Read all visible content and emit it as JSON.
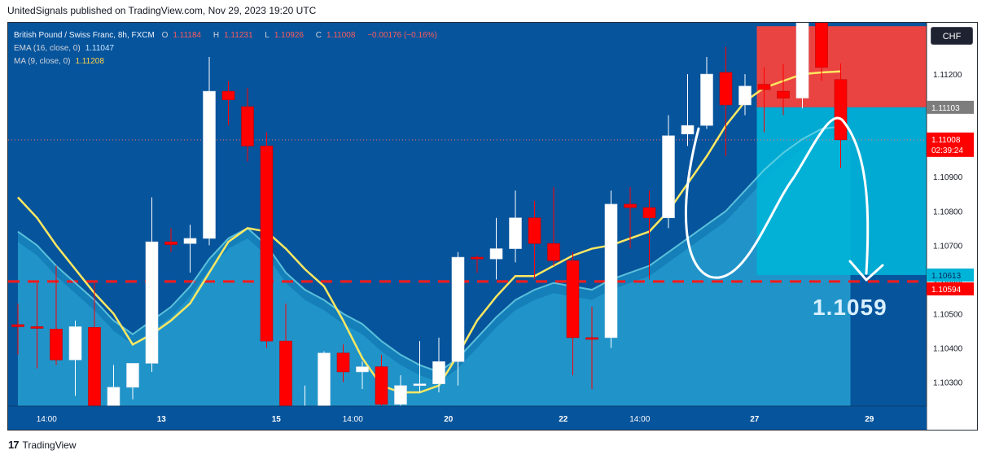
{
  "header": {
    "caption": "UnitedSignals published on TradingView.com, Nov 29, 2023 19:20 UTC"
  },
  "legend": {
    "symbol": "British Pound / Swiss Franc, 8h, FXCM",
    "o_label": "O",
    "o": "1.11184",
    "h_label": "H",
    "h": "1.11231",
    "l_label": "L",
    "l": "1.10926",
    "c_label": "C",
    "c": "1.11008",
    "change": "−0.00176 (−0.16%)",
    "ema_label": "EMA (16, close, 0)",
    "ema_value": "1.11047",
    "ma_label": "MA (9, close, 0)",
    "ma_value": "1.11208"
  },
  "currency_button": "CHF",
  "annotation_price": "1.1059",
  "footer": {
    "logo_text": "TradingView"
  },
  "colors": {
    "background": "#06549c",
    "up": "#ffffff",
    "down": "#ff0000",
    "ema": "#6fd6e6",
    "ma": "#ffe861",
    "stop_zone": "#f6433d",
    "target_zone": "#00b4d8",
    "dashed_level": "#ff1a1a"
  },
  "price_labels": {
    "current_marker": "1.11103",
    "close_price": "1.11008",
    "countdown": "02:39:24",
    "target_top": "1.10613",
    "dashed_level": "1.10594"
  },
  "chart_data": {
    "type": "candlestick",
    "title": "British Pound / Swiss Franc, 8h, FXCM",
    "ylim": [
      1.1023,
      1.1135
    ],
    "y_ticks": [
      "1.10300",
      "1.10400",
      "1.10500",
      "1.10600",
      "1.10700",
      "1.10800",
      "1.10900",
      "1.11000",
      "1.11100",
      "1.11200"
    ],
    "x_ticks": [
      {
        "label": "14:00",
        "index": 1.5
      },
      {
        "label": "13",
        "index": 7.5
      },
      {
        "label": "15",
        "index": 13.5
      },
      {
        "label": "14:00",
        "index": 17.5
      },
      {
        "label": "20",
        "index": 22.5
      },
      {
        "label": "22",
        "index": 28.5
      },
      {
        "label": "14:00",
        "index": 32.5
      },
      {
        "label": "27",
        "index": 38.5
      },
      {
        "label": "29",
        "index": 44.5
      }
    ],
    "candles": [
      {
        "o": 1.10468,
        "h": 1.1053,
        "l": 1.1038,
        "c": 1.10462
      },
      {
        "o": 1.10462,
        "h": 1.1059,
        "l": 1.1034,
        "c": 1.10458
      },
      {
        "o": 1.10455,
        "h": 1.1064,
        "l": 1.1035,
        "c": 1.10365
      },
      {
        "o": 1.10365,
        "h": 1.1048,
        "l": 1.1026,
        "c": 1.10462
      },
      {
        "o": 1.1046,
        "h": 1.1059,
        "l": 1.102,
        "c": 1.1022
      },
      {
        "o": 1.1023,
        "h": 1.1035,
        "l": 1.1018,
        "c": 1.10285
      },
      {
        "o": 1.10285,
        "h": 1.1035,
        "l": 1.1025,
        "c": 1.10355
      },
      {
        "o": 1.10355,
        "h": 1.1084,
        "l": 1.1033,
        "c": 1.1071
      },
      {
        "o": 1.1071,
        "h": 1.1075,
        "l": 1.1068,
        "c": 1.10702
      },
      {
        "o": 1.10705,
        "h": 1.1076,
        "l": 1.1062,
        "c": 1.1072
      },
      {
        "o": 1.1072,
        "h": 1.1125,
        "l": 1.107,
        "c": 1.1115
      },
      {
        "o": 1.1115,
        "h": 1.1118,
        "l": 1.1105,
        "c": 1.11125
      },
      {
        "o": 1.11105,
        "h": 1.1116,
        "l": 1.10945,
        "c": 1.1099
      },
      {
        "o": 1.1099,
        "h": 1.1103,
        "l": 1.104,
        "c": 1.1042
      },
      {
        "o": 1.1042,
        "h": 1.1053,
        "l": 1.1015,
        "c": 1.102
      },
      {
        "o": 1.1019,
        "h": 1.1029,
        "l": 1.1016,
        "c": 1.102
      },
      {
        "o": 1.1021,
        "h": 1.1039,
        "l": 1.1019,
        "c": 1.10385
      },
      {
        "o": 1.10385,
        "h": 1.1041,
        "l": 1.103,
        "c": 1.1033
      },
      {
        "o": 1.1033,
        "h": 1.1036,
        "l": 1.1028,
        "c": 1.10345
      },
      {
        "o": 1.10345,
        "h": 1.1038,
        "l": 1.102,
        "c": 1.10235
      },
      {
        "o": 1.10235,
        "h": 1.1032,
        "l": 1.1015,
        "c": 1.1029
      },
      {
        "o": 1.1029,
        "h": 1.1042,
        "l": 1.1027,
        "c": 1.10295
      },
      {
        "o": 1.10295,
        "h": 1.1043,
        "l": 1.1027,
        "c": 1.1036
      },
      {
        "o": 1.1036,
        "h": 1.1068,
        "l": 1.1029,
        "c": 1.10665
      },
      {
        "o": 1.10665,
        "h": 1.1067,
        "l": 1.1062,
        "c": 1.1066
      },
      {
        "o": 1.1066,
        "h": 1.1078,
        "l": 1.106,
        "c": 1.1069
      },
      {
        "o": 1.1069,
        "h": 1.1086,
        "l": 1.1065,
        "c": 1.1078
      },
      {
        "o": 1.1078,
        "h": 1.1083,
        "l": 1.106,
        "c": 1.10705
      },
      {
        "o": 1.10705,
        "h": 1.1087,
        "l": 1.1064,
        "c": 1.10655
      },
      {
        "o": 1.10655,
        "h": 1.1068,
        "l": 1.1032,
        "c": 1.1043
      },
      {
        "o": 1.1043,
        "h": 1.1052,
        "l": 1.1028,
        "c": 1.10425
      },
      {
        "o": 1.1043,
        "h": 1.1086,
        "l": 1.104,
        "c": 1.1082
      },
      {
        "o": 1.1082,
        "h": 1.1087,
        "l": 1.1069,
        "c": 1.1081
      },
      {
        "o": 1.1081,
        "h": 1.1086,
        "l": 1.106,
        "c": 1.1078
      },
      {
        "o": 1.1078,
        "h": 1.1108,
        "l": 1.1075,
        "c": 1.1102
      },
      {
        "o": 1.11025,
        "h": 1.112,
        "l": 1.1099,
        "c": 1.1105
      },
      {
        "o": 1.1105,
        "h": 1.1125,
        "l": 1.1104,
        "c": 1.112
      },
      {
        "o": 1.11205,
        "h": 1.1128,
        "l": 1.1096,
        "c": 1.1111
      },
      {
        "o": 1.1111,
        "h": 1.112,
        "l": 1.1108,
        "c": 1.11165
      },
      {
        "o": 1.1117,
        "h": 1.1122,
        "l": 1.1103,
        "c": 1.11155
      },
      {
        "o": 1.1115,
        "h": 1.1123,
        "l": 1.1108,
        "c": 1.1113
      },
      {
        "o": 1.1113,
        "h": 1.1143,
        "l": 1.111,
        "c": 1.1141
      },
      {
        "o": 1.1141,
        "h": 1.1146,
        "l": 1.1118,
        "c": 1.1122
      },
      {
        "o": 1.11184,
        "h": 1.11231,
        "l": 1.10926,
        "c": 1.11008
      }
    ],
    "ema": [
      1.1074,
      1.107,
      1.1064,
      1.1059,
      1.1054,
      1.1048,
      1.1044,
      1.1048,
      1.1052,
      1.1058,
      1.1066,
      1.1072,
      1.1075,
      1.107,
      1.1062,
      1.1057,
      1.1054,
      1.105,
      1.1047,
      1.1042,
      1.1038,
      1.1035,
      1.1033,
      1.1037,
      1.1043,
      1.1049,
      1.1054,
      1.1057,
      1.1059,
      1.1058,
      1.1057,
      1.106,
      1.1062,
      1.1064,
      1.1068,
      1.1072,
      1.1076,
      1.108,
      1.1086,
      1.1092,
      1.1097,
      1.1101,
      1.1104,
      1.11047
    ],
    "ma": [
      1.1084,
      1.1078,
      1.107,
      1.1063,
      1.1056,
      1.105,
      1.1041,
      1.1044,
      1.1048,
      1.1053,
      1.1062,
      1.1071,
      1.1075,
      1.1074,
      1.1069,
      1.1063,
      1.1058,
      1.1048,
      1.1037,
      1.1029,
      1.1027,
      1.1027,
      1.1029,
      1.1038,
      1.1048,
      1.1055,
      1.1061,
      1.1061,
      1.1064,
      1.1067,
      1.1069,
      1.107,
      1.1072,
      1.1074,
      1.108,
      1.1088,
      1.1096,
      1.1105,
      1.1112,
      1.1116,
      1.1118,
      1.112,
      1.11205,
      1.11208
    ],
    "dashed_level": 1.10594,
    "position": {
      "entry": 1.11103,
      "stop": 1.1134,
      "target": 1.10613,
      "start_index": 39,
      "end_index": 48
    },
    "annotation": "1.1059"
  }
}
